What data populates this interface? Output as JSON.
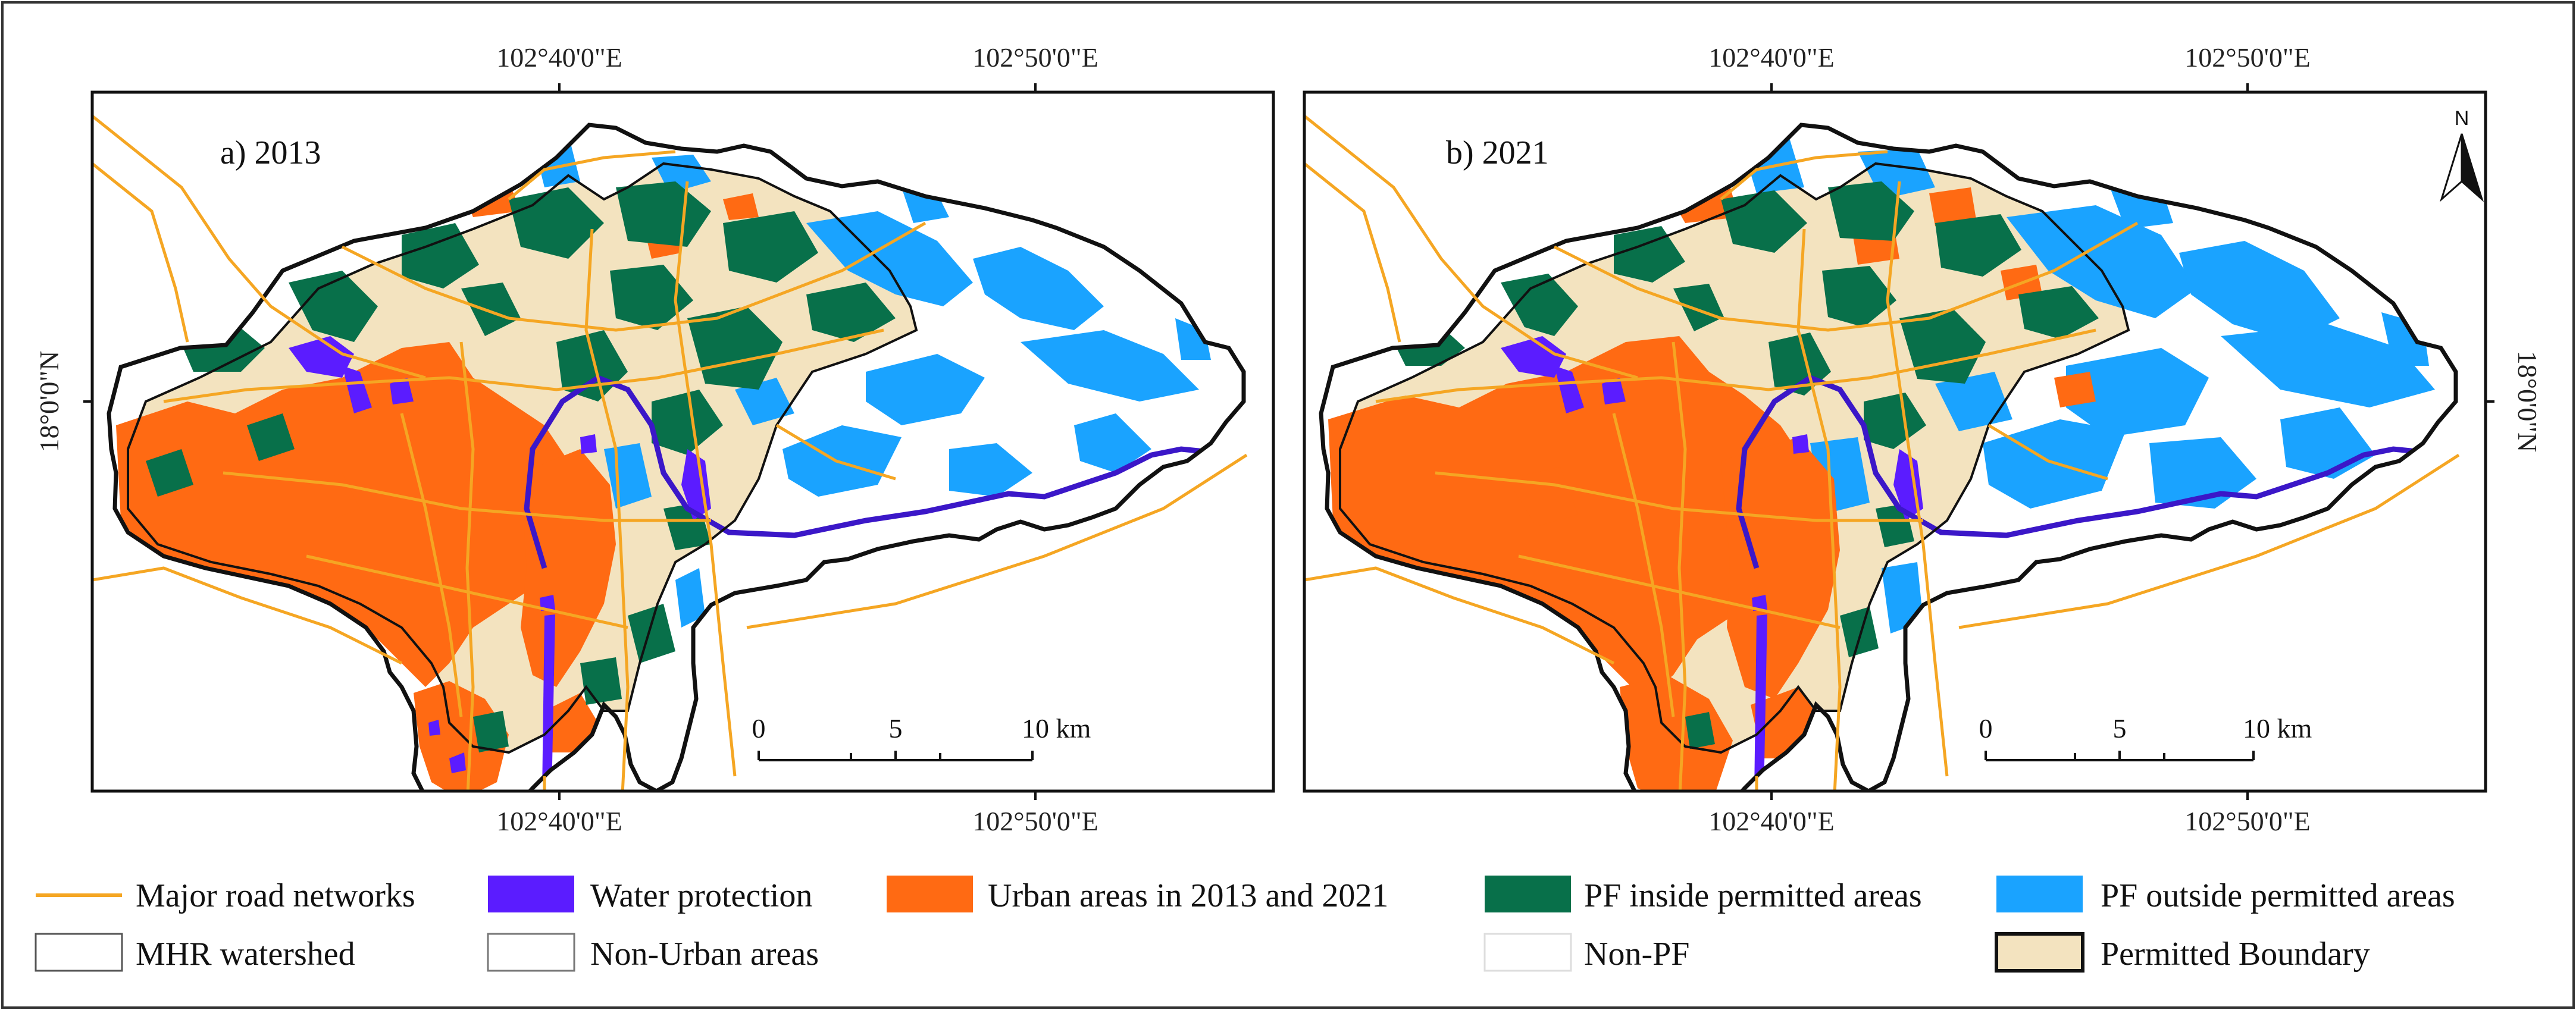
{
  "figure": {
    "outer_border": "#333333",
    "background": "#ffffff"
  },
  "panels": [
    {
      "id": "a",
      "label": "a) 2013",
      "top_ticks": [
        "102°40'0\"E",
        "102°50'0\"E"
      ],
      "bottom_ticks": [
        "102°40'0\"E",
        "102°50'0\"E"
      ],
      "left_tick": "18°0'0\"N",
      "right_tick": "",
      "scale": {
        "values": [
          "0",
          "5",
          "10 km"
        ]
      },
      "north_arrow": ""
    },
    {
      "id": "b",
      "label": "b) 2021",
      "top_ticks": [
        "102°40'0\"E",
        "102°50'0\"E"
      ],
      "bottom_ticks": [
        "102°40'0\"E",
        "102°50'0\"E"
      ],
      "left_tick": "",
      "right_tick": "18°0'0\"N",
      "scale": {
        "values": [
          "0",
          "5",
          "10 km"
        ]
      },
      "north_arrow": "N"
    }
  ],
  "legend": {
    "items": [
      {
        "label": "Major road networks",
        "type": "line",
        "color": "#f5a623"
      },
      {
        "label": "Water protection",
        "type": "fill",
        "color": "#5b1cff"
      },
      {
        "label": "Urban areas in 2013 and 2021",
        "type": "fill",
        "color": "#ff6a13"
      },
      {
        "label": "PF inside permitted areas",
        "type": "fill",
        "color": "#08704a"
      },
      {
        "label": "PF outside permitted areas",
        "type": "fill",
        "color": "#1aa3ff"
      },
      {
        "label": "MHR watershed",
        "type": "outline",
        "color": "#555555"
      },
      {
        "label": "Non-Urban areas",
        "type": "outline",
        "color": "#777777"
      },
      {
        "label": "Non-PF",
        "type": "outline",
        "color": "#dddddd"
      },
      {
        "label": "Permitted Boundary",
        "type": "boundary",
        "color": "#f3e3bf"
      }
    ]
  },
  "colors": {
    "watershed_outline": "#111111",
    "permitted_fill": "#f3e3bf",
    "urban": "#ff6a13",
    "pf_inside": "#08704a",
    "pf_outside": "#1aa3ff",
    "water": "#5b1cff",
    "river": "#3b17c8",
    "road": "#f5a623"
  }
}
